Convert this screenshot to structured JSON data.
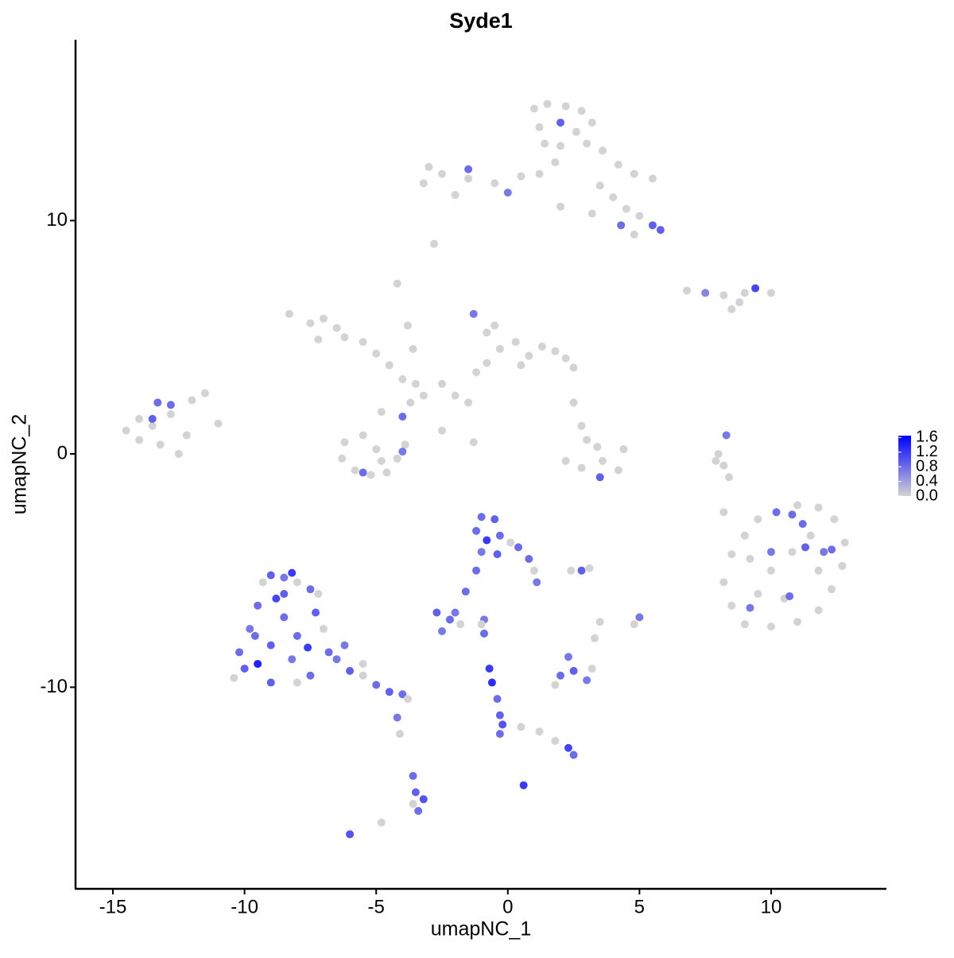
{
  "chart_data": {
    "type": "scatter",
    "title": "Syde1",
    "x_label": "umapNC_1",
    "y_label": "umapNC_2",
    "xlim": [
      -16.42,
      14.38
    ],
    "ylim": [
      -18.64,
      17.75
    ],
    "xticks": [
      -15,
      -10,
      -5,
      0,
      5,
      10
    ],
    "yticks": [
      -10,
      0,
      10
    ],
    "color_low": "#d3d3d3",
    "color_high": "#0000ff",
    "clim": [
      0,
      1.65
    ],
    "colorbar_ticks": [
      {
        "value": 0,
        "label": "0.0"
      },
      {
        "value": 0.4,
        "label": "0.4"
      },
      {
        "value": 0.8,
        "label": "0.8"
      },
      {
        "value": 1.2,
        "label": "1.2"
      },
      {
        "value": 1.6,
        "label": "1.6"
      }
    ],
    "x": [
      1,
      1.5,
      2.2,
      2.8,
      3.2,
      1.2,
      2,
      2.6,
      1.4,
      2,
      3,
      3.6,
      4.2,
      4.8,
      5.5,
      1.8,
      1.2,
      0.5,
      -0.5,
      -1.5,
      -2.5,
      -3,
      -3.2,
      -2,
      -1.5,
      0,
      3.5,
      4,
      4.5,
      5,
      5.5,
      5.8,
      4.3,
      3.2,
      2,
      4.8,
      -2.8,
      6.8,
      7.5,
      8.2,
      9,
      9.4,
      10,
      8.8,
      8.5,
      -7.5,
      -7,
      -6.5,
      -7.2,
      -6.2,
      -5.5,
      -5,
      -4.5,
      -4,
      -4.2,
      -3.8,
      -3.6,
      -3.5,
      -3.7,
      -3.2,
      -2.5,
      -2,
      -1.5,
      -1.2,
      -0.8,
      -1.3,
      -0.5,
      -0.3,
      0.3,
      0.8,
      1.3,
      1.8,
      2.2,
      2.5,
      0.5,
      -0.8,
      -2.5,
      -1.3,
      -4.8,
      -4,
      -5.5,
      -6.2,
      -6.3,
      -5.8,
      -5.2,
      -4.6,
      -4.2,
      -3.9,
      -4,
      -5.5,
      -5,
      -4.8,
      -8.3,
      -14.5,
      -14,
      -13.5,
      -13.3,
      -12.8,
      -12.8,
      -12,
      -11.5,
      -11,
      -12.2,
      -13.2,
      -14,
      -12.5,
      -13.5,
      2.8,
      3,
      3.4,
      3.6,
      2.2,
      2.8,
      3.5,
      4.2,
      4.4,
      2.5,
      8.3,
      8,
      8.2,
      8.4,
      7.9,
      8.2,
      8.5,
      9,
      9.5,
      10.2,
      11,
      11.8,
      12.4,
      12.8,
      12.7,
      12.3,
      11.8,
      11,
      10,
      9,
      8.5,
      8.2,
      9.2,
      10,
      10.8,
      11.5,
      11.8,
      10.5,
      9.5,
      11.2,
      11.3,
      12.3,
      10,
      10.7,
      9.2,
      12,
      10.8,
      -10.2,
      -10,
      -9.8,
      -9.5,
      -9.3,
      -9,
      -8.5,
      -8,
      -7.5,
      -7.3,
      -7,
      -6.8,
      -6.5,
      -6,
      -5.5,
      -5,
      -4.5,
      -4,
      -3.8,
      -9.5,
      -9,
      -8.5,
      -8.8,
      -8,
      -8.2,
      -9,
      -8,
      -7.5,
      -7.6,
      -8.5,
      -9.6,
      -7.2,
      -10.4,
      -8.2,
      -6.2,
      -5.5,
      -4.2,
      -4.1,
      -3.6,
      -3.5,
      -3.2,
      -3.4,
      -3.6,
      -6,
      -4.8,
      -1,
      -0.5,
      -1.2,
      -0.8,
      -0.3,
      0.1,
      0.4,
      -1,
      -0.4,
      0.8,
      1,
      1.1,
      -1.2,
      -1.6,
      -2,
      -2.7,
      -2.2,
      -1.8,
      -2.5,
      -0.9,
      2.8,
      3.1,
      2.4,
      -0.7,
      -0.6,
      -0.4,
      -0.3,
      -0.2,
      -0.3,
      0.5,
      1.2,
      1.8,
      2.3,
      2.5,
      0.6,
      2,
      2.5,
      3,
      3.2,
      2.3,
      1.8,
      4.8,
      5,
      3.5,
      3.3,
      -1,
      -0.9
    ],
    "y": [
      14.8,
      15,
      14.9,
      14.7,
      14.2,
      14,
      14.2,
      13.8,
      13.3,
      13.2,
      13.3,
      13,
      12.4,
      12,
      11.8,
      12.5,
      12,
      11.9,
      11.6,
      11.8,
      12,
      12.3,
      11.6,
      11.1,
      12.2,
      11.2,
      11.5,
      11,
      10.5,
      10.2,
      9.8,
      9.6,
      9.8,
      10.3,
      10.6,
      9.4,
      9,
      7,
      6.9,
      6.8,
      6.9,
      7.1,
      6.9,
      6.5,
      6.2,
      5.6,
      5.8,
      5.4,
      4.9,
      5,
      4.8,
      4.3,
      3.8,
      3.2,
      7.3,
      5.5,
      4.5,
      3,
      2.2,
      2.5,
      3,
      2.5,
      2.2,
      3.5,
      5.2,
      6,
      5.5,
      4.5,
      4.8,
      4.2,
      4.6,
      4.4,
      4.1,
      3.7,
      3.8,
      3.9,
      1,
      0.5,
      1.8,
      1.6,
      0.8,
      0.5,
      -0.2,
      -0.7,
      -0.9,
      -0.8,
      -0.2,
      0.4,
      0.1,
      -0.8,
      0.2,
      -0.3,
      6,
      1,
      1.5,
      1.2,
      2.2,
      1.7,
      2.1,
      2.3,
      2.6,
      1.3,
      0.8,
      0.4,
      0.6,
      0,
      1.5,
      1.2,
      0.6,
      0.3,
      -0.3,
      -0.3,
      -0.6,
      -1,
      -0.7,
      0.2,
      2.2,
      0.8,
      0,
      -0.5,
      -1,
      -0.3,
      -2.5,
      -4.3,
      -3.5,
      -2.8,
      -2.5,
      -2.2,
      -2.3,
      -2.8,
      -3.8,
      -4.8,
      -5.8,
      -6.7,
      -7.2,
      -7.4,
      -7.3,
      -6.5,
      -5.5,
      -4.5,
      -5,
      -4.2,
      -3.5,
      -5,
      -6.2,
      -6,
      -3,
      -4,
      -4.1,
      -4.2,
      -6.1,
      -6.6,
      -4.2,
      -2.6,
      -8.5,
      -9.2,
      -7.5,
      -6.5,
      -5.5,
      -5.2,
      -5.3,
      -5.5,
      -5.8,
      -6.8,
      -7.5,
      -8.5,
      -8.8,
      -9.3,
      -9.5,
      -9.9,
      -10.2,
      -10.3,
      -10.5,
      -9,
      -8.2,
      -7,
      -6.2,
      -7.8,
      -8.8,
      -9.8,
      -9.8,
      -9.5,
      -8.3,
      -6,
      -7.8,
      -6,
      -9.6,
      -5.1,
      -8.2,
      -9,
      -11.3,
      -12,
      -13.8,
      -14.5,
      -14.8,
      -15.3,
      -15,
      -16.3,
      -15.8,
      -2.7,
      -2.8,
      -3.3,
      -3.7,
      -3.5,
      -3.8,
      -4,
      -4.2,
      -4.3,
      -4.5,
      -5,
      -5.5,
      -5,
      -5.9,
      -6.8,
      -6.8,
      -7.1,
      -7.3,
      -7.6,
      -7.1,
      -5,
      -4.9,
      -5,
      -9.2,
      -9.8,
      -10.5,
      -11.2,
      -11.6,
      -12,
      -11.7,
      -11.9,
      -12.3,
      -12.6,
      -12.9,
      -14.2,
      -9.5,
      -9.3,
      -9.7,
      -9.2,
      -8.7,
      -9.9,
      -7.3,
      -7,
      -7.2,
      -7.9,
      -7.3,
      -7.7
    ],
    "expression": [
      0,
      0,
      0,
      0,
      0,
      0,
      0.9,
      0,
      0,
      0,
      0,
      0,
      0,
      0,
      0,
      0,
      0,
      0,
      0,
      0,
      0,
      0,
      0,
      0,
      0.8,
      0.7,
      0,
      0,
      0,
      0,
      0.9,
      0.9,
      0.8,
      0,
      0,
      0,
      0,
      0,
      0.6,
      0,
      0,
      1.1,
      0,
      0,
      0,
      0,
      0,
      0,
      0,
      0,
      0,
      0,
      0,
      0,
      0,
      0,
      0,
      0,
      0,
      0,
      0,
      0,
      0,
      0,
      0,
      0.7,
      0,
      0,
      0,
      0,
      0,
      0,
      0,
      0,
      0,
      0,
      0,
      0,
      0,
      0.8,
      0,
      0,
      0,
      0,
      0,
      0,
      0,
      0,
      0.7,
      0.8,
      0,
      0,
      0,
      0,
      0,
      0,
      0.8,
      0,
      0.8,
      0,
      0,
      0,
      0,
      0,
      0,
      0,
      0.9,
      0,
      0,
      0,
      0,
      0,
      0,
      0.9,
      0,
      0,
      0,
      0.7,
      0,
      0,
      0,
      0,
      0,
      0,
      0,
      0,
      0.8,
      0,
      0,
      0,
      0,
      0,
      0,
      0,
      0,
      0,
      0,
      0,
      0,
      0,
      0,
      0,
      0,
      0,
      0,
      0,
      0.8,
      0.9,
      0.8,
      0.7,
      0.8,
      0.7,
      0.7,
      0.8,
      0.8,
      0.9,
      0.7,
      0.8,
      0,
      0.9,
      0.7,
      0,
      0.8,
      0.9,
      0,
      0.8,
      0.7,
      0.9,
      0,
      0.8,
      0.9,
      0.8,
      0,
      1.4,
      0.9,
      0.8,
      1.1,
      0.8,
      0.7,
      0.9,
      0,
      0.8,
      1.2,
      0.9,
      0.8,
      0,
      0,
      1.2,
      0.7,
      0,
      0.7,
      0,
      0.8,
      0.9,
      1,
      0.8,
      0,
      1,
      0,
      0.8,
      0.9,
      0.8,
      1.2,
      0.8,
      0,
      0.8,
      0.7,
      0.9,
      0.8,
      0,
      0.7,
      0.8,
      0.8,
      0.7,
      0.9,
      0.8,
      0,
      0.7,
      0.7,
      0.9,
      0,
      0,
      1.2,
      1.3,
      0.8,
      0.9,
      1,
      0.8,
      0,
      0,
      0,
      1.1,
      0.8,
      1.2,
      0.8,
      0.9,
      0.7,
      0,
      0.7,
      0,
      0,
      0.7,
      0,
      0,
      0,
      0.8
    ]
  }
}
